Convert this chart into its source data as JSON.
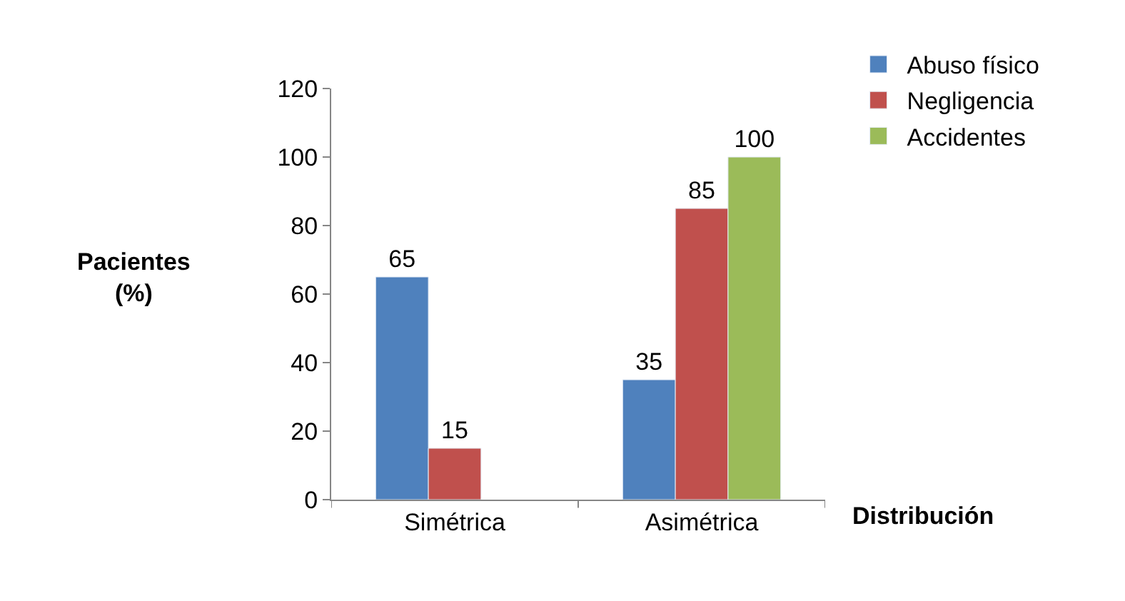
{
  "chart_data": {
    "type": "bar",
    "xlabel": "Distribución",
    "ylabel": "Pacientes\n(%)",
    "categories": [
      "Simétrica",
      "Asimétrica"
    ],
    "series": [
      {
        "name": "Abuso físico",
        "color": "#4f81bd",
        "values": [
          65,
          35
        ]
      },
      {
        "name": "Negligencia",
        "color": "#c0504d",
        "values": [
          15,
          85
        ]
      },
      {
        "name": "Accidentes",
        "color": "#9bbb59",
        "values": [
          null,
          100
        ]
      }
    ],
    "ylim": [
      0,
      120
    ],
    "yticks": [
      0,
      20,
      40,
      60,
      80,
      100,
      120
    ],
    "grid": false,
    "legend": "top right",
    "data_labels": true
  }
}
